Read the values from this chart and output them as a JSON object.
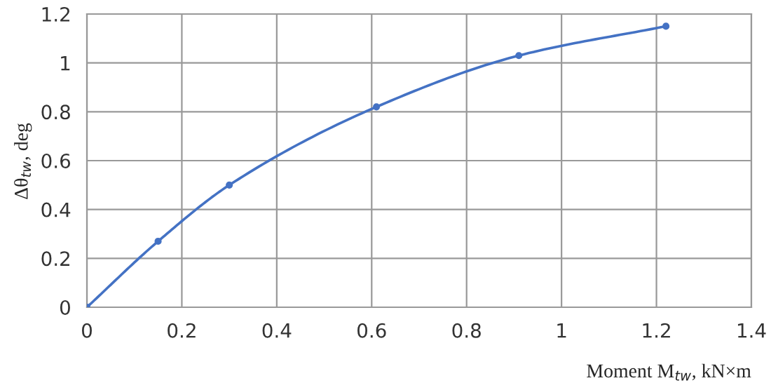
{
  "chart_data": {
    "type": "line",
    "xlabel": "Moment M$_{tw}$, kN×m",
    "ylabel": "Δθ$_{tw}$, deg",
    "x": [
      0,
      0.15,
      0.3,
      0.61,
      0.91,
      1.22
    ],
    "series": [
      {
        "color": "#4472c4",
        "values": [
          0,
          0.27,
          0.5,
          0.82,
          1.03,
          1.15
        ]
      }
    ],
    "xlim": [
      0,
      1.4
    ],
    "xticks": [
      0,
      0.2,
      0.4,
      0.6,
      0.8,
      1,
      1.2,
      1.4
    ],
    "ylim": [
      0,
      1.2
    ],
    "yticks": [
      0,
      0.2,
      0.4,
      0.6,
      0.8,
      1,
      1.2
    ],
    "grid": true,
    "marker": "circle",
    "line_style": "solid"
  }
}
